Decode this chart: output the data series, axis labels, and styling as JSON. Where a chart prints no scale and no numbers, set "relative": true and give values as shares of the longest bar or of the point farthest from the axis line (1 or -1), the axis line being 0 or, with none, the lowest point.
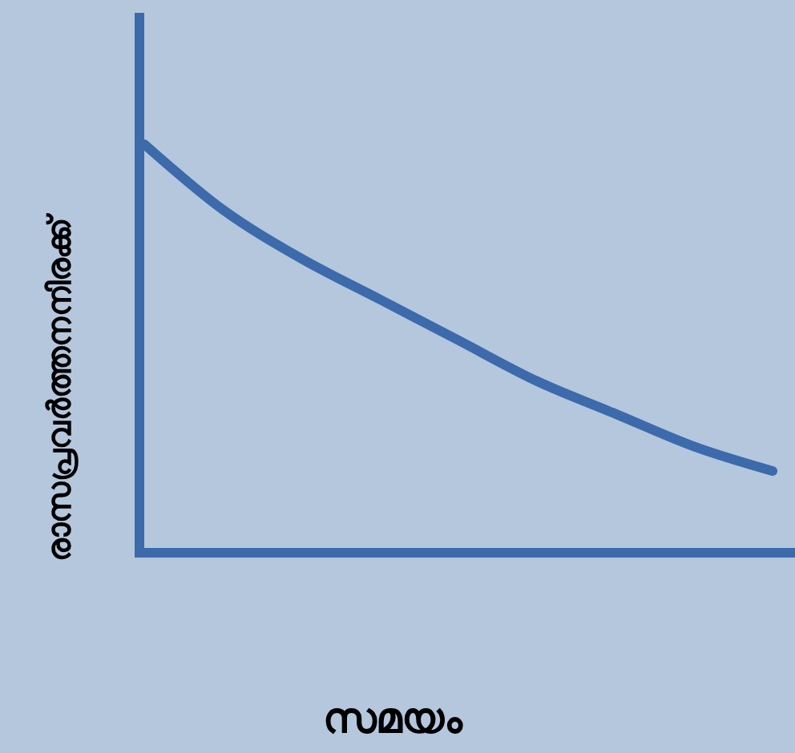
{
  "chart_data": {
    "type": "line",
    "relative": true,
    "xlabel": "സമയം",
    "ylabel": "രാസപ്രവർത്തനനിരക്ക്",
    "categories": [
      null,
      null,
      null,
      null,
      null,
      null,
      null,
      null,
      null
    ],
    "series": [
      {
        "color": "#3c6aaa",
        "values": [
          1,
          0.84,
          0.72,
          0.62,
          0.52,
          0.42,
          0.34,
          0.26,
          0.2
        ]
      }
    ],
    "tick_labels": false,
    "grid": false,
    "marker": "none",
    "line_style": "solid"
  }
}
